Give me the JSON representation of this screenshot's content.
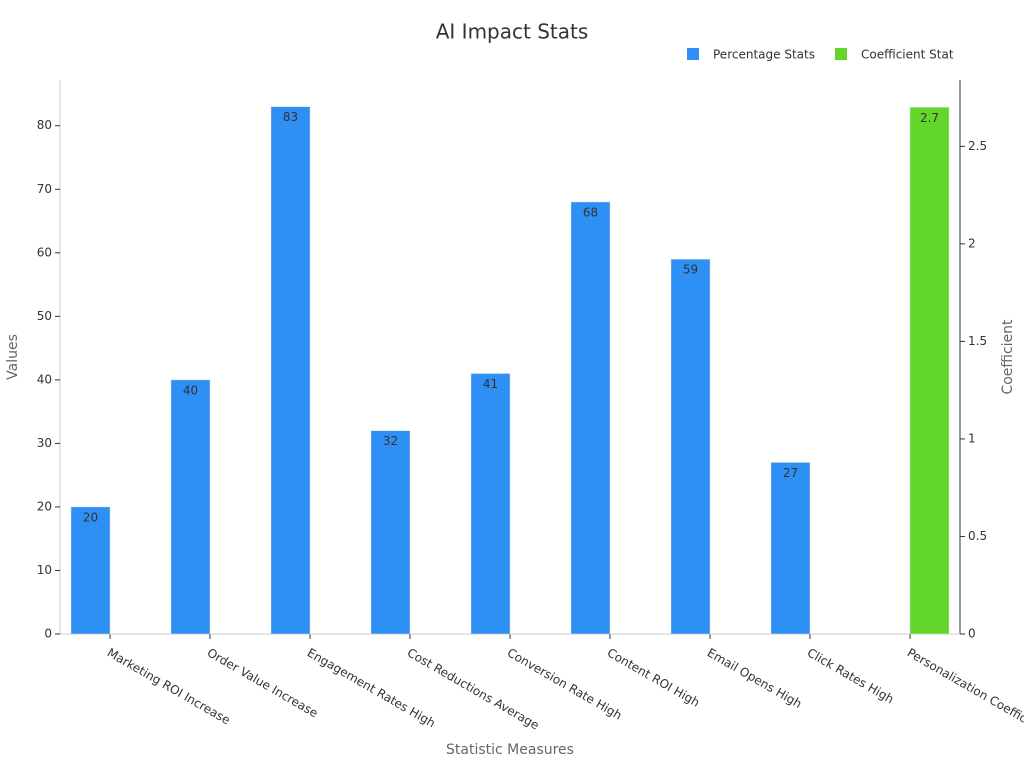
{
  "chart_data": {
    "type": "bar",
    "title": "AI Impact Stats",
    "x_label": "Statistic Measures",
    "y_label": "Values",
    "y2_label": "Coefficient",
    "categories": [
      "Marketing ROI Increase",
      "Order Value Increase",
      "Engagement Rates High",
      "Cost Reductions Average",
      "Conversion Rate High",
      "Content ROI High",
      "Email Opens High",
      "Click Rates High",
      "Personalization Coefficient"
    ],
    "series": [
      {
        "name": "Percentage Stats",
        "color": "#2e8ff5",
        "values": [
          20,
          40,
          83,
          32,
          41,
          68,
          59,
          27,
          null
        ]
      },
      {
        "name": "Coefficient Stat",
        "color": "#63d729",
        "axis": "y2",
        "values": [
          null,
          null,
          null,
          null,
          null,
          null,
          null,
          null,
          2.7
        ]
      }
    ],
    "ylim": [
      0,
      87.2
    ],
    "yticks": [
      0,
      10,
      20,
      30,
      40,
      50,
      60,
      70,
      80
    ],
    "y2lim": [
      0,
      2.84
    ],
    "y2ticks": [
      0,
      0.5,
      1,
      1.5,
      2,
      2.5
    ],
    "legend": "top-right",
    "grid": false
  }
}
